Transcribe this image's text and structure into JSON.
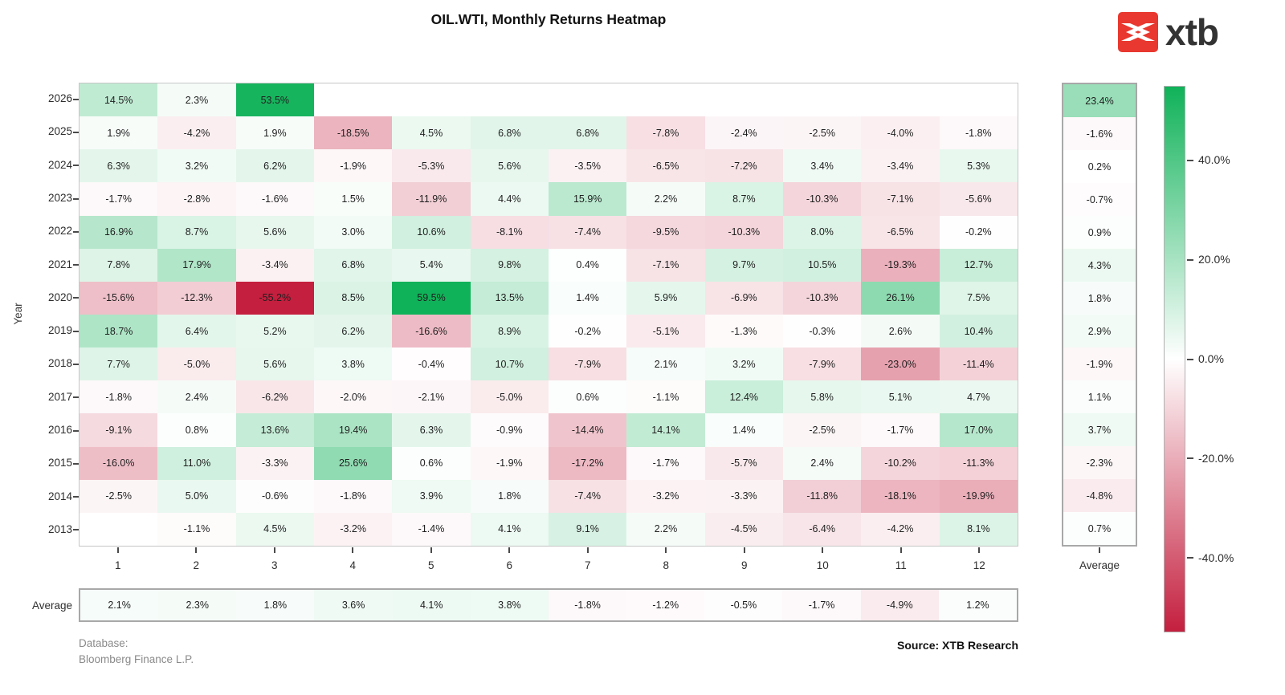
{
  "header": {
    "title": "OIL.WTI, Monthly Returns Heatmap"
  },
  "logo": {
    "text": "xtb",
    "brand_color": "#e8382f",
    "text_color": "#333333"
  },
  "chart_data": {
    "type": "heatmap",
    "title": "OIL.WTI, Monthly Returns Heatmap",
    "ylabel": "Year",
    "x_categories": [
      "1",
      "2",
      "3",
      "4",
      "5",
      "6",
      "7",
      "8",
      "9",
      "10",
      "11",
      "12"
    ],
    "series": [
      {
        "year": "2026",
        "values": [
          14.5,
          2.3,
          53.5,
          null,
          null,
          null,
          null,
          null,
          null,
          null,
          null,
          null
        ]
      },
      {
        "year": "2025",
        "values": [
          1.9,
          -4.2,
          1.9,
          -18.5,
          4.5,
          6.8,
          6.8,
          -7.8,
          -2.4,
          -2.5,
          -4.0,
          -1.8
        ]
      },
      {
        "year": "2024",
        "values": [
          6.3,
          3.2,
          6.2,
          -1.9,
          -5.3,
          5.6,
          -3.5,
          -6.5,
          -7.2,
          3.4,
          -3.4,
          5.3
        ]
      },
      {
        "year": "2023",
        "values": [
          -1.7,
          -2.8,
          -1.6,
          1.5,
          -11.9,
          4.4,
          15.9,
          2.2,
          8.7,
          -10.3,
          -7.1,
          -5.6
        ]
      },
      {
        "year": "2022",
        "values": [
          16.9,
          8.7,
          5.6,
          3.0,
          10.6,
          -8.1,
          -7.4,
          -9.5,
          -10.3,
          8.0,
          -6.5,
          -0.2
        ]
      },
      {
        "year": "2021",
        "values": [
          7.8,
          17.9,
          -3.4,
          6.8,
          5.4,
          9.8,
          0.4,
          -7.1,
          9.7,
          10.5,
          -19.3,
          12.7
        ]
      },
      {
        "year": "2020",
        "values": [
          -15.6,
          -12.3,
          -55.2,
          8.5,
          59.5,
          13.5,
          1.4,
          5.9,
          -6.9,
          -10.3,
          26.1,
          7.5
        ]
      },
      {
        "year": "2019",
        "values": [
          18.7,
          6.4,
          5.2,
          6.2,
          -16.6,
          8.9,
          -0.2,
          -5.1,
          -1.3,
          -0.3,
          2.6,
          10.4
        ]
      },
      {
        "year": "2018",
        "values": [
          7.7,
          -5.0,
          5.6,
          3.8,
          -0.4,
          10.7,
          -7.9,
          2.1,
          3.2,
          -7.9,
          -23.0,
          -11.4
        ]
      },
      {
        "year": "2017",
        "values": [
          -1.8,
          2.4,
          -6.2,
          -2.0,
          -2.1,
          -5.0,
          0.6,
          -1.1,
          12.4,
          5.8,
          5.1,
          4.7
        ]
      },
      {
        "year": "2016",
        "values": [
          -9.1,
          0.8,
          13.6,
          19.4,
          6.3,
          -0.9,
          -14.4,
          14.1,
          1.4,
          -2.5,
          -1.7,
          17.0
        ]
      },
      {
        "year": "2015",
        "values": [
          -16.0,
          11.0,
          -3.3,
          25.6,
          0.6,
          -1.9,
          -17.2,
          -1.7,
          -5.7,
          2.4,
          -10.2,
          -11.3
        ]
      },
      {
        "year": "2014",
        "values": [
          -2.5,
          5.0,
          -0.6,
          -1.8,
          3.9,
          1.8,
          -7.4,
          -3.2,
          -3.3,
          -11.8,
          -18.1,
          -19.9
        ]
      },
      {
        "year": "2013",
        "values": [
          null,
          -1.1,
          4.5,
          -3.2,
          -1.4,
          4.1,
          9.1,
          2.2,
          -4.5,
          -6.4,
          -4.2,
          8.1
        ]
      }
    ],
    "year_average_label": "Average",
    "year_averages": [
      23.4,
      -1.6,
      0.2,
      -0.7,
      0.9,
      4.3,
      1.8,
      2.9,
      -1.9,
      1.1,
      3.7,
      -2.3,
      -4.8,
      0.7
    ],
    "month_average_label": "Average",
    "month_averages": [
      2.1,
      2.3,
      1.8,
      3.6,
      4.1,
      3.8,
      -1.8,
      -1.2,
      -0.5,
      -1.7,
      -4.9,
      1.2
    ],
    "cell_value_suffix": "%",
    "colorbar": {
      "vmin": -55,
      "vmax": 55,
      "positive_color": "#10b259",
      "mid_color": "#ffffff",
      "negative_color": "#c41f3e",
      "ticks": [
        {
          "label": "40.0%",
          "value": 40
        },
        {
          "label": "20.0%",
          "value": 20
        },
        {
          "label": "0.0%",
          "value": 0
        },
        {
          "label": "-20.0%",
          "value": -20
        },
        {
          "label": "-40.0%",
          "value": -40
        }
      ]
    }
  },
  "footer": {
    "database_line1": "Database:",
    "database_line2": "Bloomberg Finance L.P.",
    "source": "Source: XTB Research"
  }
}
